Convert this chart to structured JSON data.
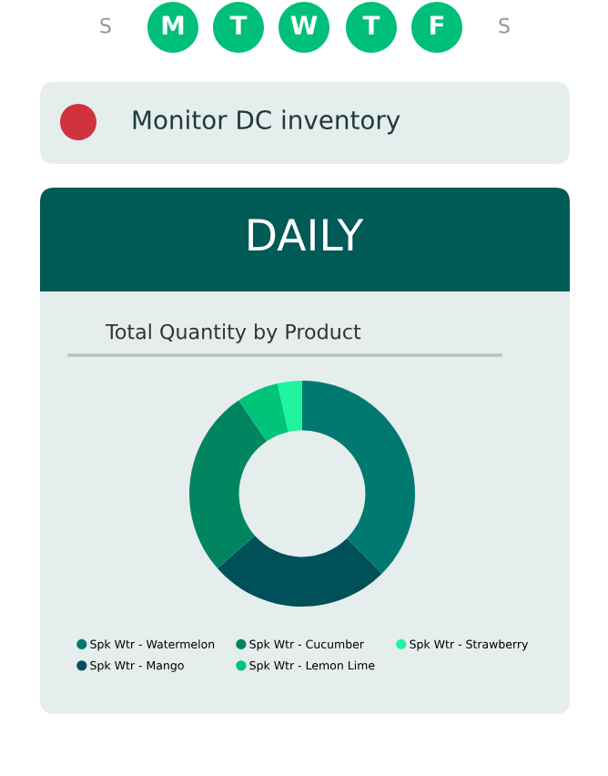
{
  "chart_data": {
    "type": "donut",
    "title": "Total Quantity by Product",
    "categories": [
      "Spk Wtr - Watermelon",
      "Spk Wtr - Mango",
      "Spk Wtr - Cucumber",
      "Spk Wtr - Lemon Lime",
      "Spk Wtr - Strawberry"
    ],
    "values": [
      37.5,
      26,
      27,
      6,
      3.5
    ],
    "colors": [
      "#007a70",
      "#00505a",
      "#008560",
      "#00c47a",
      "#1ef59e"
    ],
    "legend": "bottom",
    "annotations": [
      "S",
      "M",
      "T",
      "W",
      "T",
      "F",
      "S",
      "Monitor DC inventory",
      "DAILY"
    ]
  }
}
